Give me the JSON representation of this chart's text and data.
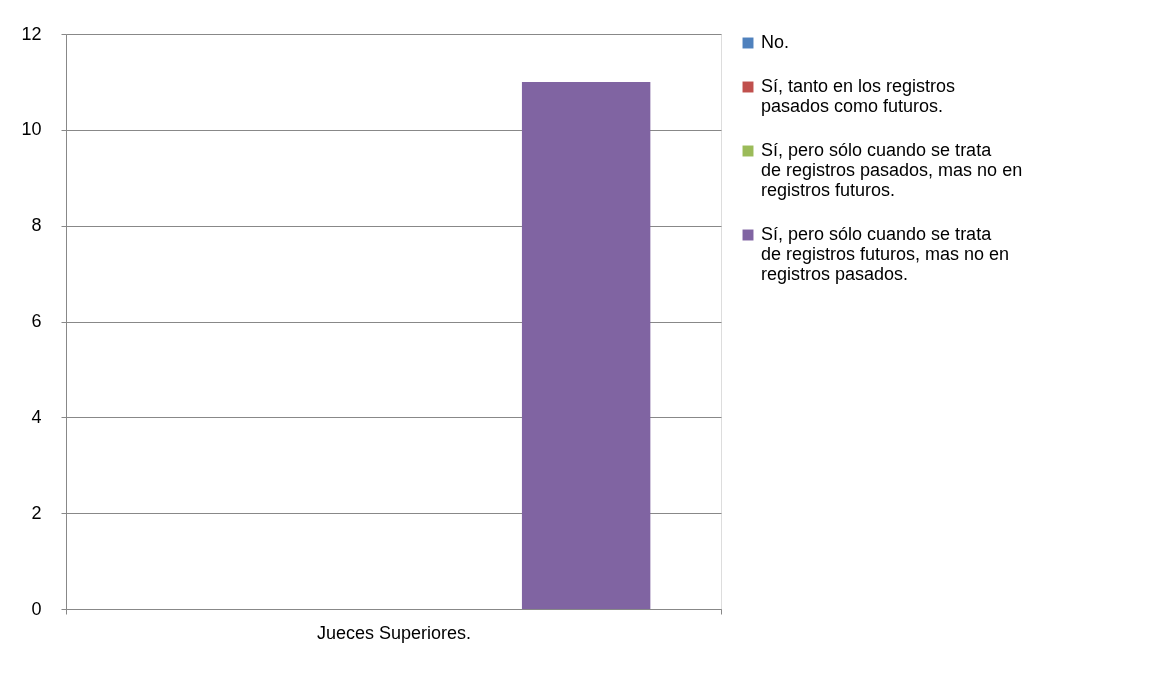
{
  "chart_data": {
    "type": "bar",
    "categories": [
      "Jueces Superiores."
    ],
    "series": [
      {
        "name": "No.",
        "color": "#4f81bd",
        "values": [
          0
        ]
      },
      {
        "name": "Sí, tanto en los registros pasados como futuros.",
        "color": "#c0504d",
        "values": [
          0
        ]
      },
      {
        "name": "Sí, pero sólo cuando se trata de registros pasados, mas no en registros futuros.",
        "color": "#9bbb59",
        "values": [
          0
        ]
      },
      {
        "name": "Sí, pero sólo cuando se trata de registros futuros, mas no en registros pasados.",
        "color": "#8064a2",
        "values": [
          11
        ]
      }
    ],
    "ylim": [
      0,
      12
    ],
    "yticks": [
      0,
      2,
      4,
      6,
      8,
      10,
      12
    ],
    "grid": "y",
    "legend": "right"
  }
}
